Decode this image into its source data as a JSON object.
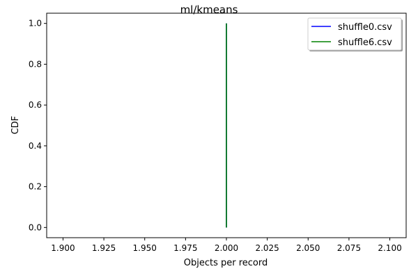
{
  "chart_data": {
    "type": "line",
    "title": "ml/kmeans",
    "xlabel": "Objects per record",
    "ylabel": "CDF",
    "xlim": [
      1.89,
      2.11
    ],
    "ylim": [
      -0.05,
      1.05
    ],
    "x_ticks": [
      {
        "value": 1.9,
        "label": "1.900"
      },
      {
        "value": 1.925,
        "label": "1.925"
      },
      {
        "value": 1.95,
        "label": "1.950"
      },
      {
        "value": 1.975,
        "label": "1.975"
      },
      {
        "value": 2.0,
        "label": "2.000"
      },
      {
        "value": 2.025,
        "label": "2.025"
      },
      {
        "value": 2.05,
        "label": "2.050"
      },
      {
        "value": 2.075,
        "label": "2.075"
      },
      {
        "value": 2.1,
        "label": "2.100"
      }
    ],
    "y_ticks": [
      {
        "value": 0.0,
        "label": "0.0"
      },
      {
        "value": 0.2,
        "label": "0.2"
      },
      {
        "value": 0.4,
        "label": "0.4"
      },
      {
        "value": 0.6,
        "label": "0.6"
      },
      {
        "value": 0.8,
        "label": "0.8"
      },
      {
        "value": 1.0,
        "label": "1.0"
      }
    ],
    "grid": false,
    "legend_position": "top-right",
    "series": [
      {
        "name": "shuffle0.csv",
        "color": "#0000ff",
        "x": [
          2.0,
          2.0
        ],
        "y": [
          0.0,
          1.0
        ]
      },
      {
        "name": "shuffle6.csv",
        "color": "#008000",
        "x": [
          2.0,
          2.0
        ],
        "y": [
          0.0,
          1.0
        ]
      }
    ]
  }
}
